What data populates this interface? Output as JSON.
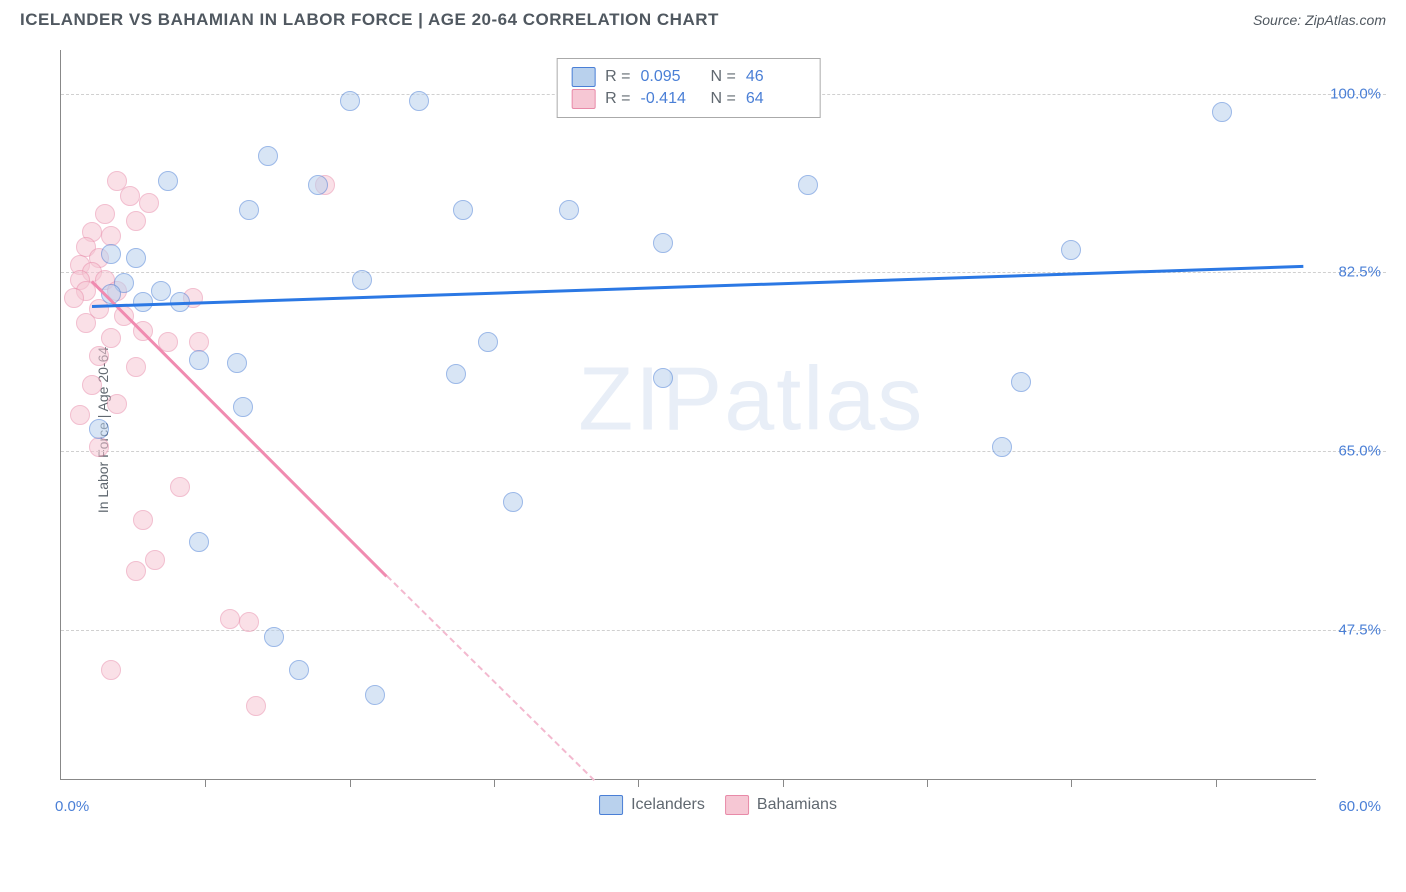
{
  "title": "ICELANDER VS BAHAMIAN IN LABOR FORCE | AGE 20-64 CORRELATION CHART",
  "source": "Source: ZipAtlas.com",
  "watermark": "ZIPatlas",
  "y_axis": {
    "label": "In Labor Force | Age 20-64",
    "ticks": [
      {
        "value": 100.0,
        "label": "100.0%",
        "pos_pct": 6.0
      },
      {
        "value": 82.5,
        "label": "82.5%",
        "pos_pct": 30.5
      },
      {
        "value": 65.0,
        "label": "65.0%",
        "pos_pct": 55.0
      },
      {
        "value": 47.5,
        "label": "47.5%",
        "pos_pct": 79.5
      }
    ]
  },
  "x_axis": {
    "min_label": "0.0%",
    "max_label": "60.0%",
    "tick_positions_pct": [
      11.5,
      23.0,
      34.5,
      46.0,
      57.5,
      69.0,
      80.5,
      92.0
    ]
  },
  "legend_top": {
    "rows": [
      {
        "color": "blue",
        "r_label": "R =",
        "r_value": "0.095",
        "n_label": "N =",
        "n_value": "46"
      },
      {
        "color": "pink",
        "r_label": "R =",
        "r_value": "-0.414",
        "n_label": "N =",
        "n_value": "64"
      }
    ]
  },
  "legend_bottom": {
    "items": [
      {
        "color": "blue",
        "label": "Icelanders"
      },
      {
        "color": "pink",
        "label": "Bahamians"
      }
    ]
  },
  "trend_lines": {
    "blue": {
      "x1_pct": 2.5,
      "y1_pct": 35.0,
      "x2_pct": 99.0,
      "y2_pct": 29.5
    },
    "pink_solid": {
      "x1_pct": 2.5,
      "y1_pct": 31.5,
      "x2_pct": 26.0,
      "y2_pct": 72.0
    },
    "pink_dashed": {
      "x1_pct": 26.0,
      "y1_pct": 72.0,
      "x2_pct": 42.5,
      "y2_pct": 100.0
    }
  },
  "series": {
    "icelanders": {
      "color": "blue",
      "marker_fill": "#b9d1ed",
      "marker_stroke": "#4a7fd6",
      "points": [
        {
          "x_pct": 23.0,
          "y_pct": 7.0
        },
        {
          "x_pct": 28.5,
          "y_pct": 7.0
        },
        {
          "x_pct": 92.5,
          "y_pct": 8.5
        },
        {
          "x_pct": 16.5,
          "y_pct": 14.5
        },
        {
          "x_pct": 8.5,
          "y_pct": 18.0
        },
        {
          "x_pct": 20.5,
          "y_pct": 18.5
        },
        {
          "x_pct": 59.5,
          "y_pct": 18.5
        },
        {
          "x_pct": 15.0,
          "y_pct": 22.0
        },
        {
          "x_pct": 32.0,
          "y_pct": 22.0
        },
        {
          "x_pct": 40.5,
          "y_pct": 22.0
        },
        {
          "x_pct": 48.0,
          "y_pct": 26.5
        },
        {
          "x_pct": 80.5,
          "y_pct": 27.5
        },
        {
          "x_pct": 4.0,
          "y_pct": 28.0
        },
        {
          "x_pct": 6.0,
          "y_pct": 28.5
        },
        {
          "x_pct": 24.0,
          "y_pct": 31.5
        },
        {
          "x_pct": 5.0,
          "y_pct": 32.0
        },
        {
          "x_pct": 8.0,
          "y_pct": 33.0
        },
        {
          "x_pct": 4.0,
          "y_pct": 33.5
        },
        {
          "x_pct": 6.5,
          "y_pct": 34.5
        },
        {
          "x_pct": 9.5,
          "y_pct": 34.5
        },
        {
          "x_pct": 34.0,
          "y_pct": 40.0
        },
        {
          "x_pct": 11.0,
          "y_pct": 42.5
        },
        {
          "x_pct": 14.0,
          "y_pct": 43.0
        },
        {
          "x_pct": 31.5,
          "y_pct": 44.5
        },
        {
          "x_pct": 48.0,
          "y_pct": 45.0
        },
        {
          "x_pct": 76.5,
          "y_pct": 45.5
        },
        {
          "x_pct": 14.5,
          "y_pct": 49.0
        },
        {
          "x_pct": 3.0,
          "y_pct": 52.0
        },
        {
          "x_pct": 75.0,
          "y_pct": 54.5
        },
        {
          "x_pct": 36.0,
          "y_pct": 62.0
        },
        {
          "x_pct": 11.0,
          "y_pct": 67.5
        },
        {
          "x_pct": 17.0,
          "y_pct": 80.5
        },
        {
          "x_pct": 19.0,
          "y_pct": 85.0
        },
        {
          "x_pct": 25.0,
          "y_pct": 88.5
        }
      ]
    },
    "bahamians": {
      "color": "pink",
      "marker_fill": "#f6c7d4",
      "marker_stroke": "#e88aa8",
      "points": [
        {
          "x_pct": 4.5,
          "y_pct": 18.0
        },
        {
          "x_pct": 21.0,
          "y_pct": 18.5
        },
        {
          "x_pct": 5.5,
          "y_pct": 20.0
        },
        {
          "x_pct": 7.0,
          "y_pct": 21.0
        },
        {
          "x_pct": 3.5,
          "y_pct": 22.5
        },
        {
          "x_pct": 6.0,
          "y_pct": 23.5
        },
        {
          "x_pct": 2.5,
          "y_pct": 25.0
        },
        {
          "x_pct": 4.0,
          "y_pct": 25.5
        },
        {
          "x_pct": 2.0,
          "y_pct": 27.0
        },
        {
          "x_pct": 3.0,
          "y_pct": 28.5
        },
        {
          "x_pct": 1.5,
          "y_pct": 29.5
        },
        {
          "x_pct": 2.5,
          "y_pct": 30.5
        },
        {
          "x_pct": 1.5,
          "y_pct": 31.5
        },
        {
          "x_pct": 3.5,
          "y_pct": 31.5
        },
        {
          "x_pct": 2.0,
          "y_pct": 33.0
        },
        {
          "x_pct": 4.5,
          "y_pct": 33.0
        },
        {
          "x_pct": 1.0,
          "y_pct": 34.0
        },
        {
          "x_pct": 10.5,
          "y_pct": 34.0
        },
        {
          "x_pct": 3.0,
          "y_pct": 35.5
        },
        {
          "x_pct": 5.0,
          "y_pct": 36.5
        },
        {
          "x_pct": 2.0,
          "y_pct": 37.5
        },
        {
          "x_pct": 6.5,
          "y_pct": 38.5
        },
        {
          "x_pct": 4.0,
          "y_pct": 39.5
        },
        {
          "x_pct": 8.5,
          "y_pct": 40.0
        },
        {
          "x_pct": 11.0,
          "y_pct": 40.0
        },
        {
          "x_pct": 3.0,
          "y_pct": 42.0
        },
        {
          "x_pct": 6.0,
          "y_pct": 43.5
        },
        {
          "x_pct": 2.5,
          "y_pct": 46.0
        },
        {
          "x_pct": 4.5,
          "y_pct": 48.5
        },
        {
          "x_pct": 1.5,
          "y_pct": 50.0
        },
        {
          "x_pct": 3.0,
          "y_pct": 54.5
        },
        {
          "x_pct": 9.5,
          "y_pct": 60.0
        },
        {
          "x_pct": 6.5,
          "y_pct": 64.5
        },
        {
          "x_pct": 7.5,
          "y_pct": 70.0
        },
        {
          "x_pct": 6.0,
          "y_pct": 71.5
        },
        {
          "x_pct": 13.5,
          "y_pct": 78.0
        },
        {
          "x_pct": 15.0,
          "y_pct": 78.5
        },
        {
          "x_pct": 4.0,
          "y_pct": 85.0
        },
        {
          "x_pct": 15.5,
          "y_pct": 90.0
        }
      ]
    }
  }
}
